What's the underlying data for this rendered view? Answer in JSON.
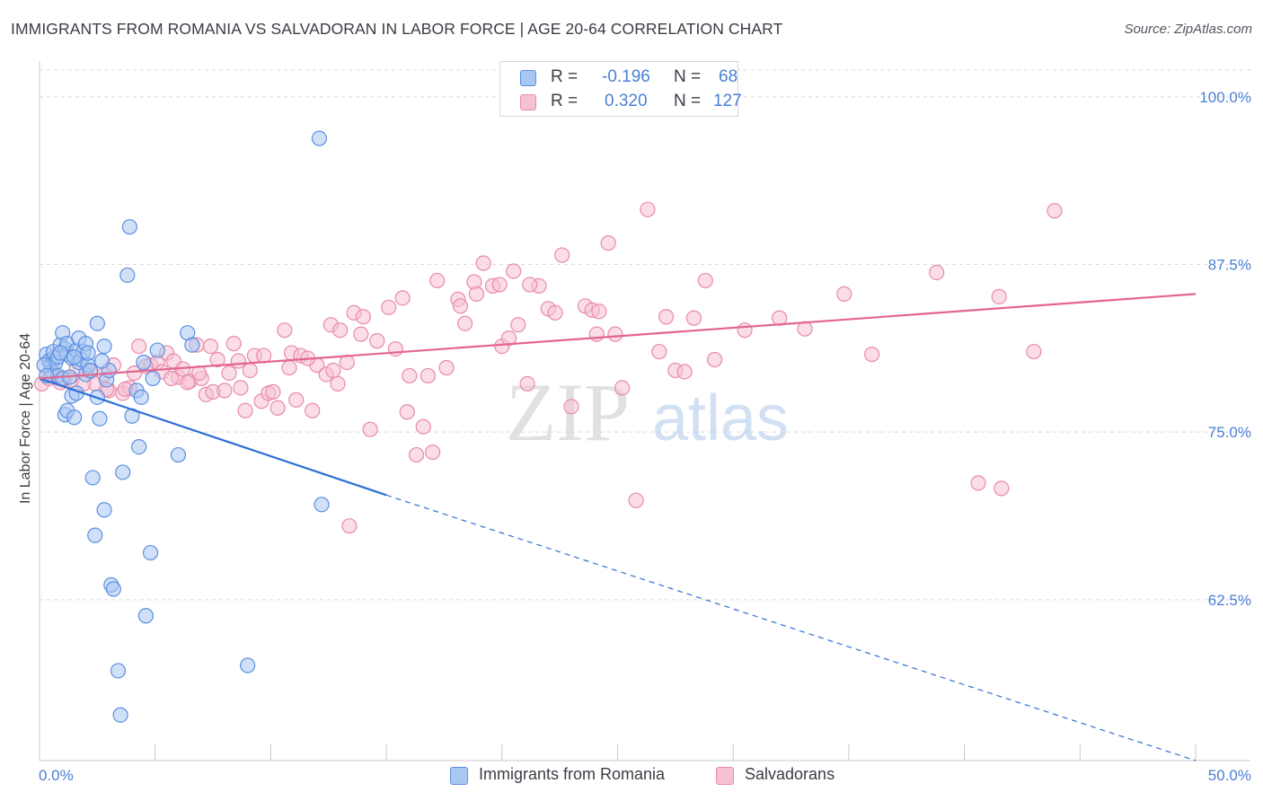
{
  "title": "IMMIGRANTS FROM ROMANIA VS SALVADORAN IN LABOR FORCE | AGE 20-64 CORRELATION CHART",
  "source": "Source: ZipAtlas.com",
  "watermark": {
    "zip": "ZIP",
    "atlas": "atlas"
  },
  "legend": {
    "series1": {
      "r_label": "R =",
      "r_value": "-0.196",
      "n_label": "N =",
      "n_value": "68"
    },
    "series2": {
      "r_label": "R =",
      "r_value": "0.320",
      "n_label": "N =",
      "n_value": "127"
    }
  },
  "colors": {
    "blue_fill": "#a9c7f2",
    "blue_stroke": "#5b8fe0",
    "blue_line": "#2f6fd6",
    "pink_fill": "#f6c1d3",
    "pink_stroke": "#e98aa8",
    "pink_line": "#e36590",
    "axis_text": "#4a7fd4",
    "grid": "#d9d9df"
  },
  "chart_data": {
    "type": "scatter",
    "title": "IMMIGRANTS FROM ROMANIA VS SALVADORAN IN LABOR FORCE | AGE 20-64 CORRELATION CHART",
    "xlabel": "",
    "ylabel": "In Labor Force | Age 20-64",
    "xlim": [
      0,
      50
    ],
    "ylim": [
      50.5,
      102
    ],
    "x_ticks": [
      0,
      50
    ],
    "x_tick_labels": [
      "0.0%",
      "50.0%"
    ],
    "y_ticks": [
      62.5,
      75.0,
      87.5,
      100.0
    ],
    "y_tick_labels": [
      "62.5%",
      "75.0%",
      "87.5%",
      "100.0%"
    ],
    "grid": true,
    "legend_position": "top-center",
    "series": [
      {
        "name": "Immigrants from Romania",
        "color": "#5b8fe0",
        "R": -0.196,
        "N": 68,
        "trend": {
          "x0": 0,
          "y0": 79.0,
          "x1": 15,
          "y1": 70.3,
          "dashed_to_x": 50,
          "dashed_to_y": 50.5
        },
        "points": [
          [
            0.3,
            80.8
          ],
          [
            0.4,
            80.3
          ],
          [
            0.5,
            80.0
          ],
          [
            0.5,
            79.5
          ],
          [
            0.6,
            80.5
          ],
          [
            0.6,
            81.0
          ],
          [
            0.7,
            80.2
          ],
          [
            0.8,
            79.2
          ],
          [
            0.8,
            80.6
          ],
          [
            0.9,
            81.5
          ],
          [
            1.0,
            79.0
          ],
          [
            1.0,
            82.4
          ],
          [
            1.1,
            81.2
          ],
          [
            1.1,
            76.3
          ],
          [
            1.2,
            80.8
          ],
          [
            1.2,
            81.6
          ],
          [
            1.2,
            76.6
          ],
          [
            1.4,
            80.5
          ],
          [
            1.4,
            77.7
          ],
          [
            1.5,
            76.1
          ],
          [
            1.6,
            77.9
          ],
          [
            1.6,
            81.1
          ],
          [
            1.7,
            82.0
          ],
          [
            1.7,
            80.2
          ],
          [
            1.8,
            80.4
          ],
          [
            1.9,
            81.0
          ],
          [
            2.0,
            81.6
          ],
          [
            2.0,
            79.3
          ],
          [
            2.1,
            80.0
          ],
          [
            2.1,
            80.9
          ],
          [
            2.2,
            79.6
          ],
          [
            2.3,
            71.6
          ],
          [
            2.4,
            67.3
          ],
          [
            2.5,
            83.1
          ],
          [
            2.5,
            77.6
          ],
          [
            2.6,
            76.0
          ],
          [
            2.8,
            81.4
          ],
          [
            2.8,
            69.2
          ],
          [
            2.9,
            78.9
          ],
          [
            3.0,
            79.6
          ],
          [
            3.1,
            63.6
          ],
          [
            3.2,
            63.3
          ],
          [
            3.4,
            57.2
          ],
          [
            3.6,
            72.0
          ],
          [
            3.8,
            86.7
          ],
          [
            3.9,
            90.3
          ],
          [
            4.0,
            76.2
          ],
          [
            4.2,
            78.1
          ],
          [
            4.3,
            73.9
          ],
          [
            4.4,
            77.6
          ],
          [
            4.5,
            80.2
          ],
          [
            4.6,
            61.3
          ],
          [
            4.8,
            66.0
          ],
          [
            4.9,
            79.0
          ],
          [
            5.1,
            81.1
          ],
          [
            6.0,
            73.3
          ],
          [
            6.4,
            82.4
          ],
          [
            6.6,
            81.5
          ],
          [
            9.0,
            57.6
          ],
          [
            12.1,
            96.9
          ],
          [
            12.2,
            69.6
          ],
          [
            0.2,
            80.0
          ],
          [
            0.3,
            79.2
          ],
          [
            1.3,
            79.1
          ],
          [
            2.7,
            80.3
          ],
          [
            3.5,
            53.9
          ],
          [
            1.5,
            80.6
          ],
          [
            0.9,
            80.9
          ]
        ]
      },
      {
        "name": "Salvadorans",
        "color": "#e98aa8",
        "R": 0.32,
        "N": 127,
        "trend": {
          "x0": 0,
          "y0": 79.0,
          "x1": 50,
          "y1": 85.3
        },
        "points": [
          [
            0.1,
            78.6
          ],
          [
            0.6,
            79.3
          ],
          [
            0.9,
            78.7
          ],
          [
            1.1,
            79.0
          ],
          [
            1.4,
            78.9
          ],
          [
            1.6,
            79.8
          ],
          [
            2.2,
            79.5
          ],
          [
            2.4,
            78.6
          ],
          [
            2.8,
            79.3
          ],
          [
            3.0,
            78.1
          ],
          [
            3.2,
            80.0
          ],
          [
            3.6,
            77.9
          ],
          [
            3.9,
            78.3
          ],
          [
            4.1,
            79.4
          ],
          [
            4.3,
            81.4
          ],
          [
            4.8,
            80.0
          ],
          [
            5.1,
            80.2
          ],
          [
            5.3,
            79.5
          ],
          [
            5.5,
            80.9
          ],
          [
            5.8,
            80.3
          ],
          [
            6.0,
            79.1
          ],
          [
            6.2,
            79.7
          ],
          [
            6.5,
            78.8
          ],
          [
            6.8,
            81.5
          ],
          [
            7.0,
            79.0
          ],
          [
            7.2,
            77.8
          ],
          [
            7.5,
            78.0
          ],
          [
            7.7,
            80.4
          ],
          [
            8.2,
            79.4
          ],
          [
            8.4,
            81.6
          ],
          [
            8.6,
            80.3
          ],
          [
            8.9,
            76.6
          ],
          [
            9.1,
            79.6
          ],
          [
            9.6,
            77.3
          ],
          [
            9.9,
            77.9
          ],
          [
            10.3,
            76.8
          ],
          [
            10.6,
            82.6
          ],
          [
            10.9,
            80.9
          ],
          [
            11.3,
            80.7
          ],
          [
            11.8,
            76.6
          ],
          [
            12.0,
            80.0
          ],
          [
            12.4,
            79.3
          ],
          [
            12.6,
            83.0
          ],
          [
            12.9,
            78.6
          ],
          [
            13.3,
            80.2
          ],
          [
            13.6,
            83.9
          ],
          [
            13.9,
            82.3
          ],
          [
            14.3,
            75.2
          ],
          [
            14.6,
            81.8
          ],
          [
            15.1,
            84.3
          ],
          [
            15.4,
            81.2
          ],
          [
            15.7,
            85.0
          ],
          [
            16.0,
            79.2
          ],
          [
            16.3,
            73.3
          ],
          [
            16.6,
            75.4
          ],
          [
            17.2,
            86.3
          ],
          [
            17.6,
            79.8
          ],
          [
            18.1,
            84.9
          ],
          [
            18.4,
            83.1
          ],
          [
            18.8,
            86.2
          ],
          [
            19.2,
            87.6
          ],
          [
            19.6,
            85.9
          ],
          [
            20.0,
            81.4
          ],
          [
            20.3,
            82.0
          ],
          [
            20.7,
            83.0
          ],
          [
            21.1,
            78.6
          ],
          [
            21.6,
            85.9
          ],
          [
            22.0,
            84.2
          ],
          [
            22.6,
            88.2
          ],
          [
            23.0,
            76.9
          ],
          [
            23.6,
            84.4
          ],
          [
            24.1,
            82.3
          ],
          [
            24.6,
            89.1
          ],
          [
            24.9,
            82.3
          ],
          [
            25.2,
            78.3
          ],
          [
            25.8,
            69.9
          ],
          [
            26.3,
            91.6
          ],
          [
            26.8,
            81.0
          ],
          [
            27.1,
            83.6
          ],
          [
            27.5,
            79.6
          ],
          [
            27.9,
            79.5
          ],
          [
            28.3,
            83.5
          ],
          [
            28.8,
            86.3
          ],
          [
            29.2,
            80.4
          ],
          [
            30.5,
            82.6
          ],
          [
            32.0,
            83.5
          ],
          [
            33.1,
            82.7
          ],
          [
            34.8,
            85.3
          ],
          [
            36.0,
            80.8
          ],
          [
            38.8,
            86.9
          ],
          [
            40.6,
            71.2
          ],
          [
            41.5,
            85.1
          ],
          [
            41.6,
            70.8
          ],
          [
            43.0,
            81.0
          ],
          [
            43.9,
            91.5
          ],
          [
            2.9,
            78.2
          ],
          [
            4.6,
            79.9
          ],
          [
            6.9,
            79.4
          ],
          [
            8.0,
            78.1
          ],
          [
            9.3,
            80.7
          ],
          [
            10.1,
            78.0
          ],
          [
            11.6,
            80.5
          ],
          [
            13.0,
            82.6
          ],
          [
            14.0,
            83.6
          ],
          [
            15.9,
            76.5
          ],
          [
            17.0,
            73.5
          ],
          [
            18.9,
            85.3
          ],
          [
            19.9,
            86.0
          ],
          [
            21.2,
            86.0
          ],
          [
            22.3,
            83.9
          ],
          [
            23.9,
            84.1
          ],
          [
            13.4,
            68.0
          ],
          [
            12.7,
            79.6
          ],
          [
            3.7,
            78.2
          ],
          [
            5.7,
            79.0
          ],
          [
            7.4,
            81.4
          ],
          [
            9.7,
            80.7
          ],
          [
            11.1,
            77.4
          ],
          [
            0.4,
            79.0
          ],
          [
            1.9,
            78.6
          ],
          [
            6.4,
            78.7
          ],
          [
            8.7,
            78.3
          ],
          [
            10.8,
            79.8
          ],
          [
            16.8,
            79.2
          ],
          [
            18.2,
            84.4
          ],
          [
            20.5,
            87.0
          ],
          [
            24.2,
            84.0
          ]
        ]
      }
    ],
    "legend_entries": [
      "Immigrants from Romania",
      "Salvadorans"
    ]
  },
  "bottom_legend": {
    "item1": "Immigrants from Romania",
    "item2": "Salvadorans"
  }
}
